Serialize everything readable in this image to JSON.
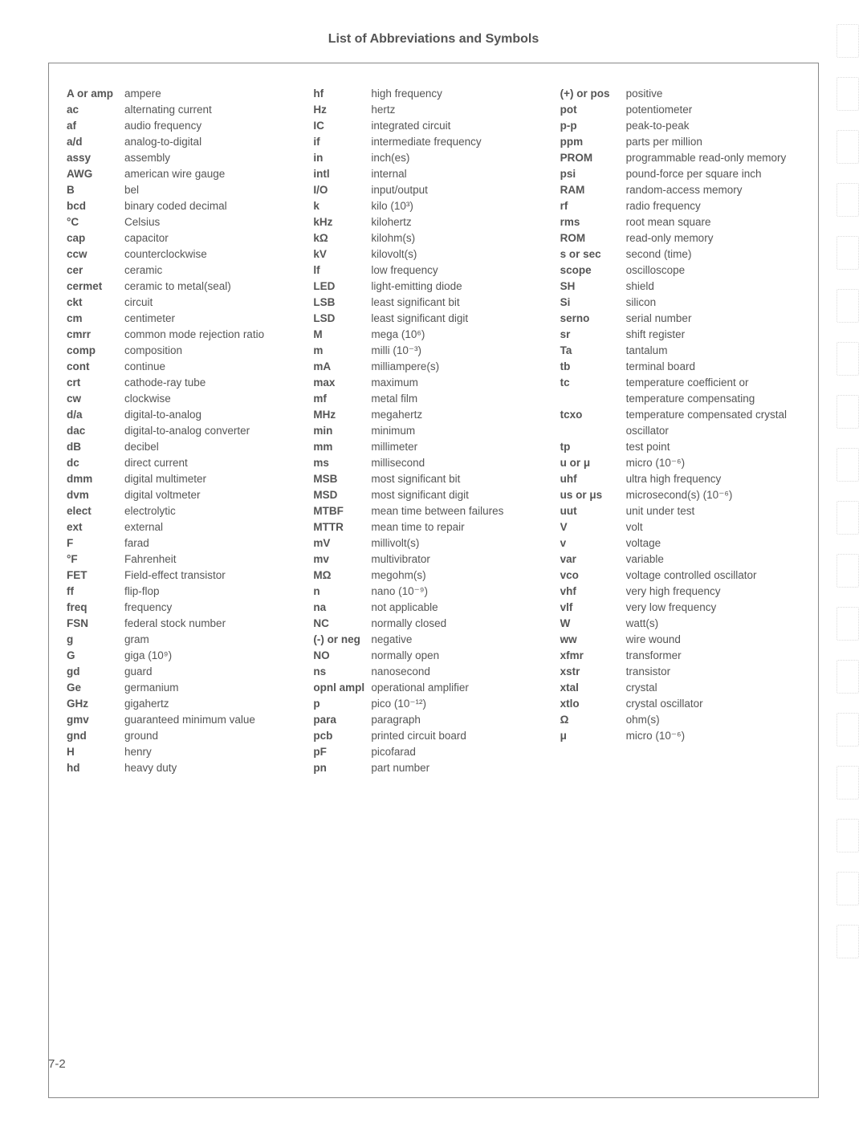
{
  "title": "List of Abbreviations and Symbols",
  "pageNumber": "7-2",
  "columns": [
    [
      {
        "abbr": "A or amp",
        "def": "ampere"
      },
      {
        "abbr": "ac",
        "def": "alternating current"
      },
      {
        "abbr": "af",
        "def": "audio frequency"
      },
      {
        "abbr": "a/d",
        "def": "analog-to-digital"
      },
      {
        "abbr": "assy",
        "def": "assembly"
      },
      {
        "abbr": "AWG",
        "def": "american wire gauge"
      },
      {
        "abbr": "B",
        "def": "bel"
      },
      {
        "abbr": "bcd",
        "def": "binary coded decimal"
      },
      {
        "abbr": "°C",
        "def": "Celsius"
      },
      {
        "abbr": "cap",
        "def": "capacitor"
      },
      {
        "abbr": "ccw",
        "def": "counterclockwise"
      },
      {
        "abbr": "cer",
        "def": "ceramic"
      },
      {
        "abbr": "cermet",
        "def": "ceramic to metal(seal)"
      },
      {
        "abbr": "ckt",
        "def": "circuit"
      },
      {
        "abbr": "cm",
        "def": "centimeter"
      },
      {
        "abbr": "cmrr",
        "def": "common mode rejection ratio"
      },
      {
        "abbr": "comp",
        "def": "composition"
      },
      {
        "abbr": "cont",
        "def": "continue"
      },
      {
        "abbr": "crt",
        "def": "cathode-ray tube"
      },
      {
        "abbr": "cw",
        "def": "clockwise"
      },
      {
        "abbr": "d/a",
        "def": "digital-to-analog"
      },
      {
        "abbr": "dac",
        "def": "digital-to-analog converter"
      },
      {
        "abbr": "dB",
        "def": "decibel"
      },
      {
        "abbr": "dc",
        "def": "direct current"
      },
      {
        "abbr": "dmm",
        "def": "digital multimeter"
      },
      {
        "abbr": "dvm",
        "def": "digital voltmeter"
      },
      {
        "abbr": "elect",
        "def": "electrolytic"
      },
      {
        "abbr": "ext",
        "def": "external"
      },
      {
        "abbr": "F",
        "def": "farad"
      },
      {
        "abbr": "°F",
        "def": "Fahrenheit"
      },
      {
        "abbr": "FET",
        "def": "Field-effect transistor"
      },
      {
        "abbr": "ff",
        "def": "flip-flop"
      },
      {
        "abbr": "freq",
        "def": "frequency"
      },
      {
        "abbr": "FSN",
        "def": "federal stock number"
      },
      {
        "abbr": "g",
        "def": "gram"
      },
      {
        "abbr": "G",
        "def": "giga (10⁹)"
      },
      {
        "abbr": "gd",
        "def": "guard"
      },
      {
        "abbr": "Ge",
        "def": "germanium"
      },
      {
        "abbr": "GHz",
        "def": "gigahertz"
      },
      {
        "abbr": "gmv",
        "def": "guaranteed minimum value"
      },
      {
        "abbr": "gnd",
        "def": "ground"
      },
      {
        "abbr": "H",
        "def": "henry"
      },
      {
        "abbr": "hd",
        "def": "heavy duty"
      }
    ],
    [
      {
        "abbr": "hf",
        "def": "high frequency"
      },
      {
        "abbr": "Hz",
        "def": "hertz"
      },
      {
        "abbr": "IC",
        "def": "integrated circuit"
      },
      {
        "abbr": "if",
        "def": "intermediate frequency"
      },
      {
        "abbr": "in",
        "def": "inch(es)"
      },
      {
        "abbr": "intl",
        "def": "internal"
      },
      {
        "abbr": "I/O",
        "def": "input/output"
      },
      {
        "abbr": "k",
        "def": "kilo (10³)"
      },
      {
        "abbr": "kHz",
        "def": "kilohertz"
      },
      {
        "abbr": "kΩ",
        "def": "kilohm(s)"
      },
      {
        "abbr": "kV",
        "def": "kilovolt(s)"
      },
      {
        "abbr": "lf",
        "def": "low frequency"
      },
      {
        "abbr": "LED",
        "def": "light-emitting diode"
      },
      {
        "abbr": "LSB",
        "def": "least significant bit"
      },
      {
        "abbr": "LSD",
        "def": "least significant digit"
      },
      {
        "abbr": "M",
        "def": "mega (10⁶)"
      },
      {
        "abbr": "m",
        "def": "milli (10⁻³)"
      },
      {
        "abbr": "mA",
        "def": "milliampere(s)"
      },
      {
        "abbr": "max",
        "def": "maximum"
      },
      {
        "abbr": "mf",
        "def": "metal film"
      },
      {
        "abbr": "MHz",
        "def": "megahertz"
      },
      {
        "abbr": "min",
        "def": "minimum"
      },
      {
        "abbr": "mm",
        "def": "millimeter"
      },
      {
        "abbr": "ms",
        "def": "millisecond"
      },
      {
        "abbr": "MSB",
        "def": "most significant bit"
      },
      {
        "abbr": "MSD",
        "def": "most significant digit"
      },
      {
        "abbr": "MTBF",
        "def": "mean time between failures"
      },
      {
        "abbr": "MTTR",
        "def": "mean time to repair"
      },
      {
        "abbr": "mV",
        "def": "millivolt(s)"
      },
      {
        "abbr": "mv",
        "def": "multivibrator"
      },
      {
        "abbr": "MΩ",
        "def": "megohm(s)"
      },
      {
        "abbr": "n",
        "def": "nano (10⁻⁹)"
      },
      {
        "abbr": "na",
        "def": "not applicable"
      },
      {
        "abbr": "NC",
        "def": "normally closed"
      },
      {
        "abbr": "(-) or neg",
        "def": "negative"
      },
      {
        "abbr": "NO",
        "def": "normally open"
      },
      {
        "abbr": "ns",
        "def": "nanosecond"
      },
      {
        "abbr": "opnl ampl",
        "def": "operational amplifier"
      },
      {
        "abbr": "p",
        "def": "pico (10⁻¹²)"
      },
      {
        "abbr": "para",
        "def": "paragraph"
      },
      {
        "abbr": "pcb",
        "def": "printed circuit board"
      },
      {
        "abbr": "pF",
        "def": "picofarad"
      },
      {
        "abbr": "pn",
        "def": "part number"
      }
    ],
    [
      {
        "abbr": "(+) or pos",
        "def": "positive"
      },
      {
        "abbr": "pot",
        "def": "potentiometer"
      },
      {
        "abbr": "p-p",
        "def": "peak-to-peak"
      },
      {
        "abbr": "ppm",
        "def": "parts per million"
      },
      {
        "abbr": "PROM",
        "def": "programmable read-only memory"
      },
      {
        "abbr": "psi",
        "def": "pound-force per square inch"
      },
      {
        "abbr": "RAM",
        "def": "random-access memory"
      },
      {
        "abbr": "rf",
        "def": "radio frequency"
      },
      {
        "abbr": "rms",
        "def": "root mean square"
      },
      {
        "abbr": "ROM",
        "def": "read-only memory"
      },
      {
        "abbr": "s or sec",
        "def": "second (time)"
      },
      {
        "abbr": "scope",
        "def": "oscilloscope"
      },
      {
        "abbr": "SH",
        "def": "shield"
      },
      {
        "abbr": "Si",
        "def": "silicon"
      },
      {
        "abbr": "serno",
        "def": "serial number"
      },
      {
        "abbr": "sr",
        "def": "shift register"
      },
      {
        "abbr": "Ta",
        "def": "tantalum"
      },
      {
        "abbr": "tb",
        "def": "terminal board"
      },
      {
        "abbr": "tc",
        "def": "temperature coefficient or temperature compensating"
      },
      {
        "abbr": "tcxo",
        "def": "temperature compensated crystal oscillator"
      },
      {
        "abbr": "tp",
        "def": "test point"
      },
      {
        "abbr": "u or μ",
        "def": "micro (10⁻⁶)"
      },
      {
        "abbr": "uhf",
        "def": "ultra high frequency"
      },
      {
        "abbr": "us or μs",
        "def": "microsecond(s) (10⁻⁶)"
      },
      {
        "abbr": "uut",
        "def": "unit under test"
      },
      {
        "abbr": "V",
        "def": "volt"
      },
      {
        "abbr": "v",
        "def": "voltage"
      },
      {
        "abbr": "var",
        "def": "variable"
      },
      {
        "abbr": "vco",
        "def": "voltage controlled oscillator"
      },
      {
        "abbr": "vhf",
        "def": "very high frequency"
      },
      {
        "abbr": "vlf",
        "def": "very low frequency"
      },
      {
        "abbr": "W",
        "def": "watt(s)"
      },
      {
        "abbr": "ww",
        "def": "wire wound"
      },
      {
        "abbr": "xfmr",
        "def": "transformer"
      },
      {
        "abbr": "xstr",
        "def": "transistor"
      },
      {
        "abbr": "xtal",
        "def": "crystal"
      },
      {
        "abbr": "xtlo",
        "def": "crystal oscillator"
      },
      {
        "abbr": "Ω",
        "def": "ohm(s)"
      },
      {
        "abbr": "μ",
        "def": "micro (10⁻⁶)"
      }
    ]
  ],
  "tabCount": 18
}
